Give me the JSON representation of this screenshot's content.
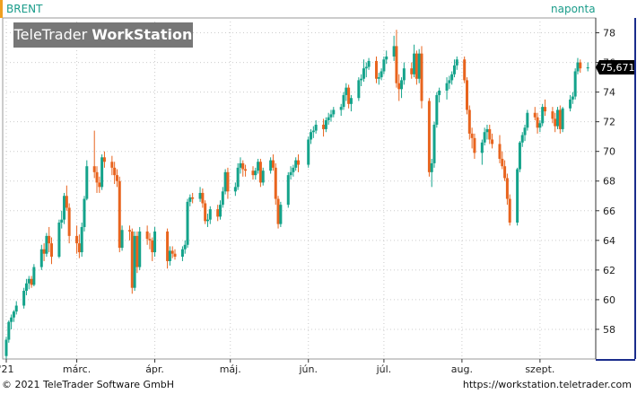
{
  "header": {
    "symbol": "BRENT",
    "period": "naponta",
    "watermark_part1": "TeleTrader",
    "watermark_part2": "WorkStation"
  },
  "footer": {
    "copyright": "© 2021  TeleTrader Software GmbH",
    "url": "https://workstation.teletrader.com"
  },
  "colors": {
    "up": "#14a38b",
    "down": "#e8641e",
    "axis": "#1a2c8c",
    "grid": "#cccccc",
    "last_label_bg": "#000000"
  },
  "chart_data": {
    "type": "candlestick",
    "title": "",
    "xlabel": "",
    "ylabel": "",
    "ylim": [
      56,
      79
    ],
    "y_ticks": [
      58,
      60,
      62,
      64,
      66,
      68,
      70,
      72,
      74,
      76,
      78
    ],
    "x_tick_labels": [
      {
        "label": "'21",
        "date": "2021-02-01"
      },
      {
        "label": "márc.",
        "date": "2021-03-01"
      },
      {
        "label": "ápr.",
        "date": "2021-04-01"
      },
      {
        "label": "máj.",
        "date": "2021-05-01"
      },
      {
        "label": "jún.",
        "date": "2021-06-01"
      },
      {
        "label": "júl.",
        "date": "2021-07-01"
      },
      {
        "label": "aug.",
        "date": "2021-08-01"
      },
      {
        "label": "szept.",
        "date": "2021-09-01"
      }
    ],
    "xlim": [
      "2021-02-01",
      "2021-09-21"
    ],
    "last_value_label": "75,671",
    "last_value": 75.671,
    "grid": true,
    "candles": [
      [
        "2021-02-01",
        56.2,
        57.5,
        56.0,
        57.3
      ],
      [
        "2021-02-02",
        57.3,
        58.6,
        57.1,
        58.5
      ],
      [
        "2021-02-03",
        58.5,
        59.0,
        58.0,
        58.8
      ],
      [
        "2021-02-04",
        58.8,
        59.3,
        58.5,
        59.2
      ],
      [
        "2021-02-05",
        59.2,
        59.9,
        59.0,
        59.6
      ],
      [
        "2021-02-08",
        59.6,
        60.8,
        59.4,
        60.6
      ],
      [
        "2021-02-09",
        60.6,
        61.4,
        60.3,
        61.1
      ],
      [
        "2021-02-10",
        61.1,
        61.6,
        60.7,
        61.4
      ],
      [
        "2021-02-11",
        61.4,
        61.6,
        60.8,
        61.0
      ],
      [
        "2021-02-12",
        61.0,
        62.4,
        60.9,
        62.2
      ],
      [
        "2021-02-15",
        62.2,
        63.7,
        62.0,
        63.4
      ],
      [
        "2021-02-16",
        63.4,
        63.8,
        62.6,
        63.1
      ],
      [
        "2021-02-17",
        63.1,
        64.5,
        62.9,
        64.3
      ],
      [
        "2021-02-18",
        64.3,
        64.9,
        63.2,
        63.8
      ],
      [
        "2021-02-19",
        63.8,
        64.2,
        62.4,
        62.9
      ],
      [
        "2021-02-22",
        62.9,
        65.4,
        62.8,
        65.2
      ],
      [
        "2021-02-23",
        65.2,
        66.0,
        64.8,
        65.4
      ],
      [
        "2021-02-24",
        65.4,
        67.2,
        65.1,
        67.0
      ],
      [
        "2021-02-25",
        67.0,
        67.7,
        66.0,
        66.2
      ],
      [
        "2021-02-26",
        66.2,
        66.5,
        63.8,
        64.3
      ],
      [
        "2021-03-01",
        64.3,
        65.0,
        63.1,
        63.8
      ],
      [
        "2021-03-02",
        63.8,
        64.4,
        62.8,
        63.2
      ],
      [
        "2021-03-03",
        63.2,
        65.2,
        62.9,
        64.9
      ],
      [
        "2021-03-04",
        64.9,
        67.0,
        64.6,
        66.8
      ],
      [
        "2021-03-05",
        66.8,
        69.4,
        66.7,
        69.0
      ],
      [
        "2021-03-08",
        69.0,
        71.4,
        68.2,
        68.6
      ],
      [
        "2021-03-09",
        68.6,
        69.0,
        67.2,
        67.9
      ],
      [
        "2021-03-10",
        67.9,
        68.3,
        67.2,
        67.6
      ],
      [
        "2021-03-11",
        67.6,
        69.8,
        67.4,
        69.6
      ],
      [
        "2021-03-12",
        69.6,
        70.0,
        68.9,
        69.3
      ],
      [
        "2021-03-15",
        69.3,
        69.7,
        68.4,
        68.9
      ],
      [
        "2021-03-16",
        68.9,
        69.3,
        67.8,
        68.4
      ],
      [
        "2021-03-17",
        68.4,
        68.8,
        67.6,
        68.0
      ],
      [
        "2021-03-18",
        68.0,
        68.3,
        63.2,
        63.5
      ],
      [
        "2021-03-19",
        63.5,
        65.0,
        63.3,
        64.7
      ],
      [
        "2021-03-22",
        64.7,
        65.0,
        64.0,
        64.6
      ],
      [
        "2021-03-23",
        64.6,
        64.8,
        60.4,
        60.8
      ],
      [
        "2021-03-24",
        60.8,
        64.6,
        60.6,
        64.3
      ],
      [
        "2021-03-25",
        64.3,
        64.6,
        61.8,
        62.2
      ],
      [
        "2021-03-26",
        62.2,
        64.9,
        62.0,
        64.6
      ],
      [
        "2021-03-29",
        64.6,
        65.0,
        63.7,
        64.1
      ],
      [
        "2021-03-30",
        64.1,
        64.5,
        63.4,
        64.0
      ],
      [
        "2021-03-31",
        64.0,
        64.2,
        62.6,
        63.2
      ],
      [
        "2021-04-01",
        63.2,
        64.9,
        62.9,
        64.6
      ],
      [
        "2021-04-06",
        64.6,
        64.8,
        62.1,
        62.6
      ],
      [
        "2021-04-07",
        62.6,
        63.6,
        62.3,
        63.3
      ],
      [
        "2021-04-08",
        63.3,
        63.6,
        62.8,
        63.1
      ],
      [
        "2021-04-09",
        63.1,
        63.4,
        62.7,
        62.9
      ],
      [
        "2021-04-12",
        62.9,
        63.6,
        62.6,
        63.4
      ],
      [
        "2021-04-13",
        63.4,
        64.0,
        63.1,
        63.7
      ],
      [
        "2021-04-14",
        63.7,
        66.8,
        63.5,
        66.6
      ],
      [
        "2021-04-15",
        66.6,
        67.1,
        66.3,
        66.9
      ],
      [
        "2021-04-16",
        66.9,
        67.2,
        66.5,
        66.8
      ],
      [
        "2021-04-19",
        66.8,
        67.6,
        66.6,
        67.2
      ],
      [
        "2021-04-20",
        67.2,
        67.5,
        66.2,
        66.5
      ],
      [
        "2021-04-21",
        66.5,
        66.7,
        65.1,
        65.3
      ],
      [
        "2021-04-22",
        65.3,
        65.8,
        64.9,
        65.4
      ],
      [
        "2021-04-23",
        65.4,
        66.3,
        65.1,
        66.1
      ],
      [
        "2021-04-26",
        66.1,
        66.4,
        65.3,
        65.6
      ],
      [
        "2021-04-27",
        65.6,
        66.7,
        65.4,
        66.4
      ],
      [
        "2021-04-28",
        66.4,
        67.6,
        66.2,
        67.3
      ],
      [
        "2021-04-29",
        67.3,
        68.8,
        67.1,
        68.6
      ],
      [
        "2021-04-30",
        68.6,
        68.9,
        66.8,
        67.3
      ],
      [
        "2021-05-03",
        67.3,
        67.9,
        67.0,
        67.6
      ],
      [
        "2021-05-04",
        67.6,
        69.2,
        67.4,
        68.9
      ],
      [
        "2021-05-05",
        68.9,
        69.6,
        68.5,
        69.2
      ],
      [
        "2021-05-06",
        69.2,
        69.4,
        68.3,
        68.8
      ],
      [
        "2021-05-07",
        68.8,
        69.1,
        68.3,
        68.7
      ],
      [
        "2021-05-10",
        68.7,
        69.0,
        68.1,
        68.4
      ],
      [
        "2021-05-11",
        68.4,
        68.9,
        68.1,
        68.7
      ],
      [
        "2021-05-12",
        68.7,
        69.5,
        68.5,
        69.3
      ],
      [
        "2021-05-13",
        69.3,
        69.5,
        67.6,
        67.9
      ],
      [
        "2021-05-14",
        67.9,
        68.9,
        67.7,
        68.7
      ],
      [
        "2021-05-17",
        68.7,
        69.6,
        68.5,
        69.4
      ],
      [
        "2021-05-18",
        69.4,
        69.8,
        68.7,
        68.9
      ],
      [
        "2021-05-19",
        68.9,
        69.2,
        66.4,
        66.8
      ],
      [
        "2021-05-20",
        66.8,
        67.0,
        64.8,
        65.1
      ],
      [
        "2021-05-21",
        65.1,
        66.6,
        64.9,
        66.4
      ],
      [
        "2021-05-24",
        66.4,
        68.6,
        66.2,
        68.4
      ],
      [
        "2021-05-25",
        68.4,
        69.0,
        68.1,
        68.6
      ],
      [
        "2021-05-26",
        68.6,
        69.1,
        68.3,
        68.9
      ],
      [
        "2021-05-27",
        68.9,
        69.6,
        68.7,
        69.4
      ],
      [
        "2021-05-28",
        69.4,
        69.8,
        68.6,
        69.1
      ],
      [
        "2021-06-01",
        69.1,
        71.0,
        68.9,
        70.8
      ],
      [
        "2021-06-02",
        70.8,
        71.5,
        70.5,
        71.3
      ],
      [
        "2021-06-03",
        71.3,
        71.7,
        70.9,
        71.4
      ],
      [
        "2021-06-04",
        71.4,
        72.1,
        71.2,
        71.8
      ],
      [
        "2021-06-07",
        71.8,
        72.2,
        71.0,
        71.5
      ],
      [
        "2021-06-08",
        71.5,
        72.3,
        71.3,
        72.1
      ],
      [
        "2021-06-09",
        72.1,
        72.6,
        71.8,
        72.3
      ],
      [
        "2021-06-10",
        72.3,
        72.8,
        72.0,
        72.5
      ],
      [
        "2021-06-11",
        72.5,
        73.0,
        72.3,
        72.8
      ],
      [
        "2021-06-14",
        72.8,
        73.2,
        72.4,
        73.0
      ],
      [
        "2021-06-15",
        73.0,
        74.0,
        72.8,
        73.8
      ],
      [
        "2021-06-16",
        73.8,
        74.6,
        73.4,
        74.3
      ],
      [
        "2021-06-17",
        74.3,
        74.5,
        72.9,
        73.2
      ],
      [
        "2021-06-18",
        73.2,
        73.8,
        72.7,
        73.6
      ],
      [
        "2021-06-21",
        73.6,
        75.0,
        73.4,
        74.8
      ],
      [
        "2021-06-22",
        74.8,
        75.2,
        74.4,
        74.9
      ],
      [
        "2021-06-23",
        74.9,
        76.2,
        74.7,
        75.6
      ],
      [
        "2021-06-24",
        75.6,
        76.0,
        75.0,
        75.7
      ],
      [
        "2021-06-25",
        75.7,
        76.3,
        75.5,
        76.1
      ],
      [
        "2021-06-28",
        76.1,
        76.4,
        74.6,
        74.9
      ],
      [
        "2021-06-29",
        74.9,
        75.3,
        74.5,
        75.0
      ],
      [
        "2021-06-30",
        75.0,
        75.6,
        74.8,
        75.4
      ],
      [
        "2021-07-01",
        75.4,
        76.4,
        75.2,
        76.2
      ],
      [
        "2021-07-02",
        76.2,
        76.8,
        75.9,
        76.4
      ],
      [
        "2021-07-05",
        76.4,
        77.8,
        76.1,
        77.1
      ],
      [
        "2021-07-06",
        77.1,
        78.2,
        74.3,
        74.6
      ],
      [
        "2021-07-07",
        74.6,
        75.2,
        73.4,
        74.2
      ],
      [
        "2021-07-08",
        74.2,
        75.0,
        73.6,
        74.8
      ],
      [
        "2021-07-09",
        74.8,
        76.0,
        74.5,
        75.6
      ],
      [
        "2021-07-12",
        75.6,
        76.0,
        74.9,
        75.2
      ],
      [
        "2021-07-13",
        75.2,
        77.2,
        75.0,
        76.6
      ],
      [
        "2021-07-14",
        76.6,
        76.8,
        74.5,
        74.9
      ],
      [
        "2021-07-15",
        74.9,
        76.9,
        74.6,
        76.6
      ],
      [
        "2021-07-16",
        76.6,
        77.1,
        72.9,
        73.4
      ],
      [
        "2021-07-19",
        73.4,
        73.6,
        68.3,
        68.6
      ],
      [
        "2021-07-20",
        68.6,
        69.5,
        67.6,
        69.2
      ],
      [
        "2021-07-21",
        69.2,
        72.0,
        68.9,
        71.8
      ],
      [
        "2021-07-22",
        71.8,
        74.0,
        71.6,
        73.8
      ],
      [
        "2021-07-23",
        73.8,
        74.3,
        73.3,
        74.1
      ],
      [
        "2021-07-26",
        74.1,
        75.0,
        73.5,
        74.6
      ],
      [
        "2021-07-27",
        74.6,
        75.1,
        74.2,
        74.8
      ],
      [
        "2021-07-28",
        74.8,
        75.4,
        74.5,
        75.2
      ],
      [
        "2021-07-29",
        75.2,
        76.2,
        75.0,
        75.8
      ],
      [
        "2021-07-30",
        75.8,
        76.4,
        75.5,
        76.2
      ],
      [
        "2021-08-02",
        76.2,
        76.4,
        74.6,
        74.8
      ],
      [
        "2021-08-03",
        74.8,
        75.0,
        72.5,
        72.8
      ],
      [
        "2021-08-04",
        72.8,
        73.1,
        70.8,
        71.2
      ],
      [
        "2021-08-05",
        71.2,
        71.6,
        70.2,
        70.9
      ],
      [
        "2021-08-06",
        70.9,
        71.2,
        69.5,
        69.9
      ],
      [
        "2021-08-09",
        69.9,
        70.8,
        69.1,
        70.6
      ],
      [
        "2021-08-10",
        70.6,
        71.6,
        70.4,
        71.3
      ],
      [
        "2021-08-11",
        71.3,
        71.8,
        70.8,
        71.5
      ],
      [
        "2021-08-12",
        71.5,
        71.8,
        70.5,
        70.8
      ],
      [
        "2021-08-13",
        70.8,
        71.2,
        70.2,
        70.5
      ],
      [
        "2021-08-16",
        70.5,
        71.1,
        69.2,
        69.5
      ],
      [
        "2021-08-17",
        69.5,
        70.0,
        68.8,
        69.0
      ],
      [
        "2021-08-18",
        69.0,
        69.4,
        68.0,
        68.2
      ],
      [
        "2021-08-19",
        68.2,
        68.5,
        66.4,
        66.8
      ],
      [
        "2021-08-20",
        66.8,
        67.1,
        65.0,
        65.2
      ],
      [
        "2021-08-23",
        65.2,
        68.9,
        65.0,
        68.8
      ],
      [
        "2021-08-24",
        68.8,
        70.7,
        68.6,
        70.6
      ],
      [
        "2021-08-25",
        70.6,
        71.3,
        70.3,
        71.1
      ],
      [
        "2021-08-26",
        71.1,
        71.8,
        70.7,
        71.6
      ],
      [
        "2021-08-27",
        71.6,
        72.8,
        71.4,
        72.6
      ],
      [
        "2021-08-30",
        72.6,
        73.0,
        72.1,
        72.3
      ],
      [
        "2021-08-31",
        72.3,
        72.6,
        71.2,
        71.6
      ],
      [
        "2021-09-01",
        71.6,
        72.1,
        71.3,
        71.9
      ],
      [
        "2021-09-02",
        71.9,
        73.2,
        71.7,
        73.0
      ],
      [
        "2021-09-03",
        73.0,
        73.5,
        72.4,
        72.7
      ],
      [
        "2021-09-06",
        72.7,
        73.0,
        71.9,
        72.2
      ],
      [
        "2021-09-07",
        72.2,
        72.6,
        71.3,
        71.7
      ],
      [
        "2021-09-08",
        71.7,
        73.0,
        71.5,
        72.8
      ],
      [
        "2021-09-09",
        72.8,
        73.1,
        71.2,
        71.5
      ],
      [
        "2021-09-10",
        71.5,
        73.0,
        71.3,
        72.9
      ],
      [
        "2021-09-13",
        72.9,
        73.8,
        72.7,
        73.5
      ],
      [
        "2021-09-14",
        73.5,
        74.0,
        73.2,
        73.7
      ],
      [
        "2021-09-15",
        73.7,
        75.6,
        73.5,
        75.4
      ],
      [
        "2021-09-16",
        75.4,
        76.3,
        75.2,
        76.0
      ],
      [
        "2021-09-17",
        76.0,
        76.2,
        75.3,
        75.6
      ],
      [
        "2021-09-20",
        75.6,
        76.0,
        75.4,
        75.671
      ]
    ]
  }
}
